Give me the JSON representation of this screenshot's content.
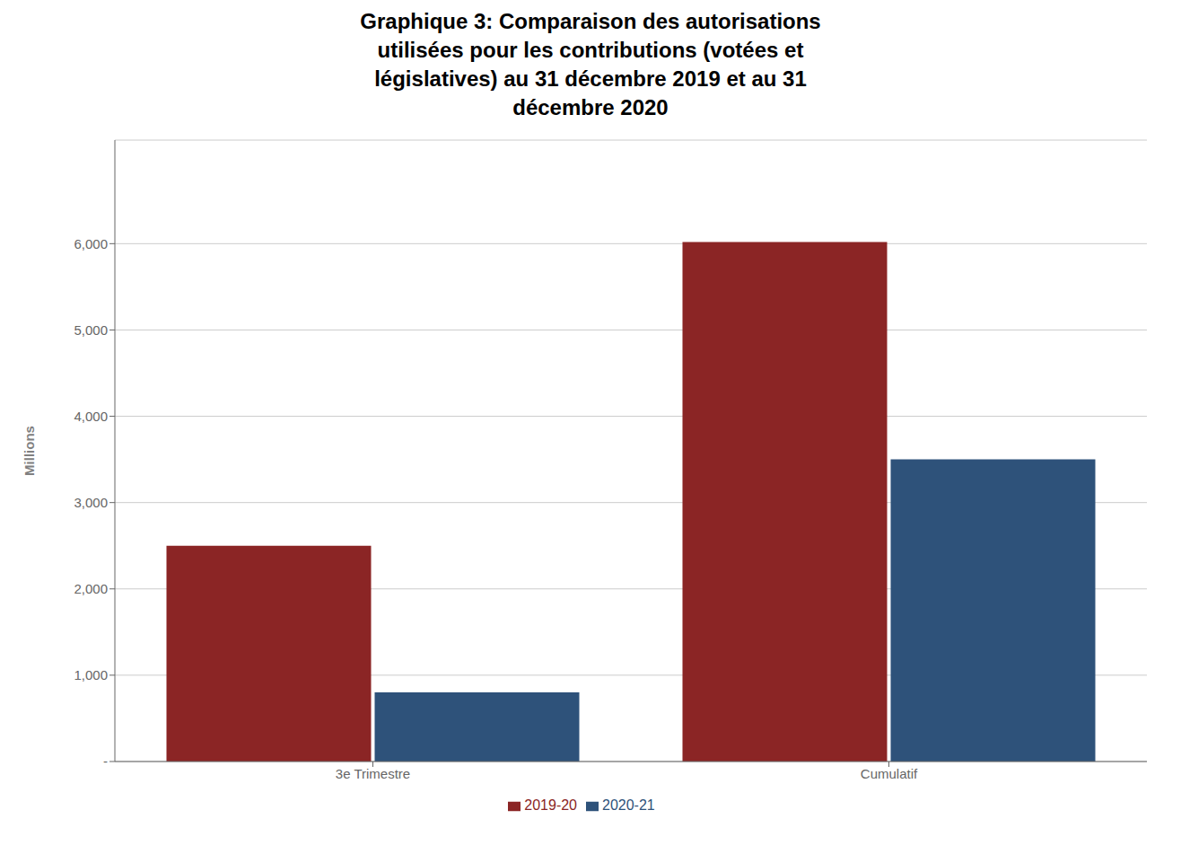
{
  "chart_data": {
    "type": "bar",
    "title": "Graphique 3: Comparaison des autorisations\nutilisées pour les contributions (votées et\nlégislatives) au 31 décembre 2019 et au 31\ndécembre 2020",
    "categories": [
      "3e Trimestre",
      "Cumulatif"
    ],
    "series": [
      {
        "name": "2019-20",
        "color": "#8B2525",
        "values": [
          2500,
          6020
        ]
      },
      {
        "name": "2020-21",
        "color": "#2E527A",
        "values": [
          800,
          3500
        ]
      }
    ],
    "ylabel": "Millions",
    "ylim": [
      0,
      7200
    ],
    "yticks": [
      {
        "value": 0,
        "label": "-"
      },
      {
        "value": 1000,
        "label": "1,000"
      },
      {
        "value": 2000,
        "label": "2,000"
      },
      {
        "value": 3000,
        "label": "3,000"
      },
      {
        "value": 4000,
        "label": "4,000"
      },
      {
        "value": 5000,
        "label": "5,000"
      },
      {
        "value": 6000,
        "label": "6,000"
      }
    ],
    "grid": true,
    "legend": "bottom"
  }
}
